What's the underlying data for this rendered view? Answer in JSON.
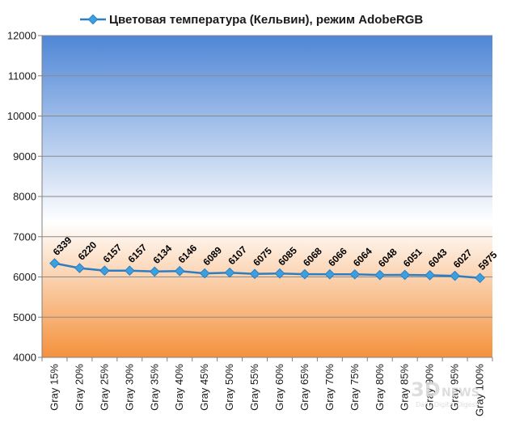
{
  "chart_data": {
    "type": "line",
    "legend": "Цветовая температура (Кельвин), режим AdobeRGB",
    "legend_position": "top",
    "categories": [
      "Gray 15%",
      "Gray 20%",
      "Gray 25%",
      "Gray 30%",
      "Gray 35%",
      "Gray 40%",
      "Gray 45%",
      "Gray 50%",
      "Gray 55%",
      "Gray 60%",
      "Gray 65%",
      "Gray 70%",
      "Gray 75%",
      "Gray 80%",
      "Gray 85%",
      "Gray 90%",
      "Gray 95%",
      "Gray 100%"
    ],
    "series": [
      {
        "name": "Цветовая температура (Кельвин), режим AdobeRGB",
        "values": [
          6339,
          6220,
          6157,
          6157,
          6134,
          6146,
          6089,
          6107,
          6075,
          6085,
          6068,
          6066,
          6064,
          6048,
          6051,
          6043,
          6027,
          5975
        ]
      }
    ],
    "ylim": [
      4000,
      12000
    ],
    "yticks": [
      4000,
      5000,
      6000,
      7000,
      8000,
      9000,
      10000,
      11000,
      12000
    ],
    "grid": true,
    "colors": {
      "line": "#2e7dc0",
      "marker": "#3aa0e0",
      "bg_top": "#4f86d6",
      "bg_mid": "#ffffff",
      "bg_bottom": "#f4913c"
    }
  },
  "watermark": {
    "main": "3DNews",
    "sub": "Daily Digital Digest"
  }
}
